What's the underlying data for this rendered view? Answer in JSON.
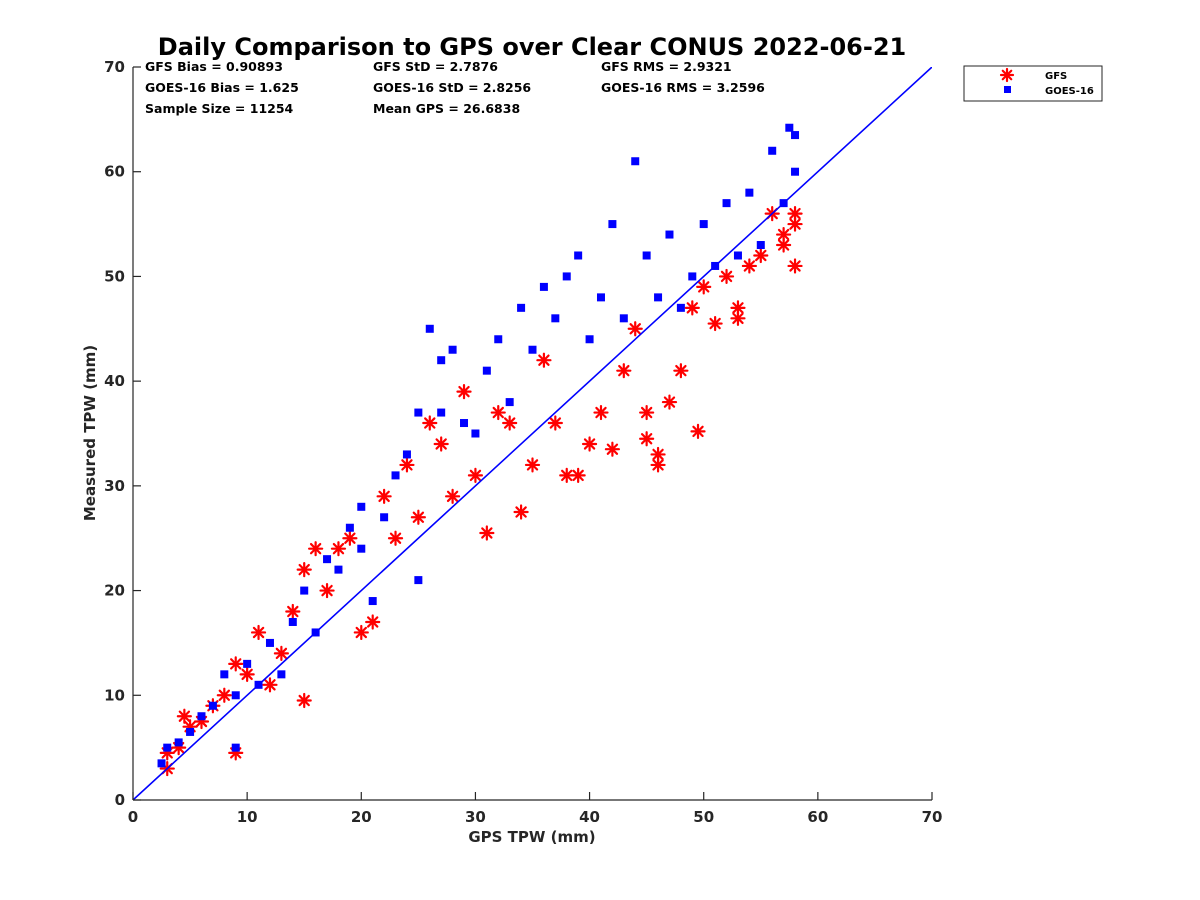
{
  "chart_data": {
    "type": "scatter",
    "title": "Daily Comparison to GPS over Clear CONUS 2022-06-21",
    "xlabel": "GPS TPW (mm)",
    "ylabel": "Measured TPW (mm)",
    "xlim": [
      0,
      70
    ],
    "ylim": [
      0,
      70
    ],
    "xticks": [
      0,
      10,
      20,
      30,
      40,
      50,
      60,
      70
    ],
    "yticks": [
      0,
      10,
      20,
      30,
      40,
      50,
      60,
      70
    ],
    "grid": false,
    "legend_position": "outside-top-right",
    "reference_line": {
      "name": "1:1 line",
      "x": [
        0,
        70
      ],
      "y": [
        0,
        70
      ],
      "color": "#0000ff"
    },
    "stats": [
      {
        "text": "GFS Bias = 0.90893"
      },
      {
        "text": "GFS StD = 2.7876"
      },
      {
        "text": "GFS RMS = 2.9321"
      },
      {
        "text": "GOES-16 Bias = 1.625"
      },
      {
        "text": "GOES-16 StD = 2.8256"
      },
      {
        "text": "GOES-16 RMS = 3.2596"
      },
      {
        "text": "Sample Size = 11254"
      },
      {
        "text": "Mean GPS = 26.6838"
      }
    ],
    "series": [
      {
        "name": "GFS",
        "marker": "asterisk",
        "color": "#ff0000",
        "points": [
          [
            3,
            3
          ],
          [
            3,
            4.5
          ],
          [
            4,
            5
          ],
          [
            4.5,
            8
          ],
          [
            5,
            7
          ],
          [
            6,
            7.5
          ],
          [
            7,
            9
          ],
          [
            8,
            10
          ],
          [
            9,
            4.5
          ],
          [
            9,
            13
          ],
          [
            10,
            12
          ],
          [
            11,
            16
          ],
          [
            12,
            11
          ],
          [
            13,
            14
          ],
          [
            14,
            18
          ],
          [
            15,
            9.5
          ],
          [
            15,
            22
          ],
          [
            16,
            24
          ],
          [
            17,
            20
          ],
          [
            18,
            24
          ],
          [
            19,
            25
          ],
          [
            20,
            16
          ],
          [
            21,
            17
          ],
          [
            22,
            29
          ],
          [
            23,
            25
          ],
          [
            24,
            32
          ],
          [
            25,
            27
          ],
          [
            26,
            36
          ],
          [
            27,
            34
          ],
          [
            28,
            29
          ],
          [
            29,
            39
          ],
          [
            30,
            31
          ],
          [
            31,
            25.5
          ],
          [
            32,
            37
          ],
          [
            33,
            36
          ],
          [
            34,
            27.5
          ],
          [
            35,
            32
          ],
          [
            36,
            42
          ],
          [
            37,
            36
          ],
          [
            38,
            31
          ],
          [
            39,
            31
          ],
          [
            40,
            34
          ],
          [
            41,
            37
          ],
          [
            42,
            33.5
          ],
          [
            43,
            41
          ],
          [
            44,
            45
          ],
          [
            45,
            34.5
          ],
          [
            45,
            37
          ],
          [
            46,
            33
          ],
          [
            46,
            32
          ],
          [
            47,
            38
          ],
          [
            48,
            41
          ],
          [
            49,
            47
          ],
          [
            49.5,
            35.2
          ],
          [
            50,
            49
          ],
          [
            51,
            45.5
          ],
          [
            52,
            50
          ],
          [
            53,
            46
          ],
          [
            53,
            47
          ],
          [
            54,
            51
          ],
          [
            55,
            52
          ],
          [
            56,
            56
          ],
          [
            57,
            53
          ],
          [
            57,
            54
          ],
          [
            58,
            51
          ],
          [
            58,
            55
          ],
          [
            58,
            56
          ]
        ]
      },
      {
        "name": "GOES-16",
        "marker": "square",
        "color": "#0000ff",
        "points": [
          [
            2.5,
            3.5
          ],
          [
            3,
            5
          ],
          [
            4,
            5.5
          ],
          [
            5,
            6.5
          ],
          [
            6,
            8
          ],
          [
            7,
            9
          ],
          [
            8,
            12
          ],
          [
            9,
            5
          ],
          [
            9,
            10
          ],
          [
            10,
            13
          ],
          [
            11,
            11
          ],
          [
            12,
            15
          ],
          [
            13,
            12
          ],
          [
            14,
            17
          ],
          [
            15,
            20
          ],
          [
            16,
            16
          ],
          [
            17,
            23
          ],
          [
            18,
            22
          ],
          [
            19,
            26
          ],
          [
            20,
            24
          ],
          [
            20,
            28
          ],
          [
            21,
            19
          ],
          [
            22,
            27
          ],
          [
            23,
            31
          ],
          [
            24,
            33
          ],
          [
            25,
            21
          ],
          [
            25,
            37
          ],
          [
            26,
            45
          ],
          [
            27,
            37
          ],
          [
            27,
            42
          ],
          [
            28,
            43
          ],
          [
            29,
            36
          ],
          [
            30,
            35
          ],
          [
            31,
            41
          ],
          [
            32,
            44
          ],
          [
            33,
            38
          ],
          [
            34,
            47
          ],
          [
            35,
            43
          ],
          [
            36,
            49
          ],
          [
            37,
            46
          ],
          [
            38,
            50
          ],
          [
            39,
            52
          ],
          [
            40,
            44
          ],
          [
            41,
            48
          ],
          [
            42,
            55
          ],
          [
            43,
            46
          ],
          [
            44,
            61
          ],
          [
            45,
            52
          ],
          [
            46,
            48
          ],
          [
            47,
            54
          ],
          [
            48,
            47
          ],
          [
            49,
            50
          ],
          [
            50,
            55
          ],
          [
            51,
            51
          ],
          [
            52,
            57
          ],
          [
            53,
            52
          ],
          [
            54,
            58
          ],
          [
            55,
            53
          ],
          [
            56,
            62
          ],
          [
            57,
            57
          ],
          [
            57.5,
            64.2
          ],
          [
            58,
            63.5
          ],
          [
            58,
            60
          ]
        ]
      }
    ]
  }
}
